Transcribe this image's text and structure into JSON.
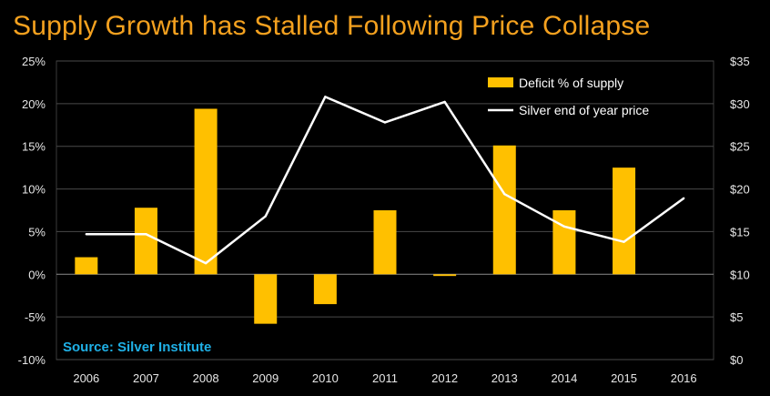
{
  "title": "Supply Growth has Stalled Following Price Collapse",
  "source": "Source: Silver Institute",
  "colors": {
    "title": "#f4a11f",
    "bar": "#ffc000",
    "line": "#ffffff",
    "source": "#1fb0e6",
    "background": "#000000",
    "grid": "#5a5a5a"
  },
  "chart_data": {
    "type": "bar",
    "categories": [
      "2006",
      "2007",
      "2008",
      "2009",
      "2010",
      "2011",
      "2012",
      "2013",
      "2014",
      "2015",
      "2016"
    ],
    "series": [
      {
        "name": "Deficit % of supply",
        "type": "bar",
        "axis": "left",
        "values": [
          2.0,
          7.8,
          19.4,
          -5.8,
          -3.5,
          7.5,
          -0.2,
          15.1,
          7.5,
          12.5,
          null
        ]
      },
      {
        "name": "Silver end of year price",
        "type": "line",
        "axis": "right",
        "values": [
          14.7,
          14.7,
          11.3,
          16.8,
          30.8,
          27.8,
          30.2,
          19.4,
          15.6,
          13.8,
          18.9
        ]
      }
    ],
    "y_left": {
      "min": -10,
      "max": 25,
      "step": 5,
      "tick_labels": [
        "-10%",
        "-5%",
        "0%",
        "5%",
        "10%",
        "15%",
        "20%",
        "25%"
      ]
    },
    "y_right": {
      "min": 0,
      "max": 35,
      "step": 5,
      "tick_labels": [
        "$0",
        "$5",
        "$10",
        "$15",
        "$20",
        "$25",
        "$30",
        "$35"
      ]
    },
    "grid": true,
    "legend_position": "top-right"
  }
}
